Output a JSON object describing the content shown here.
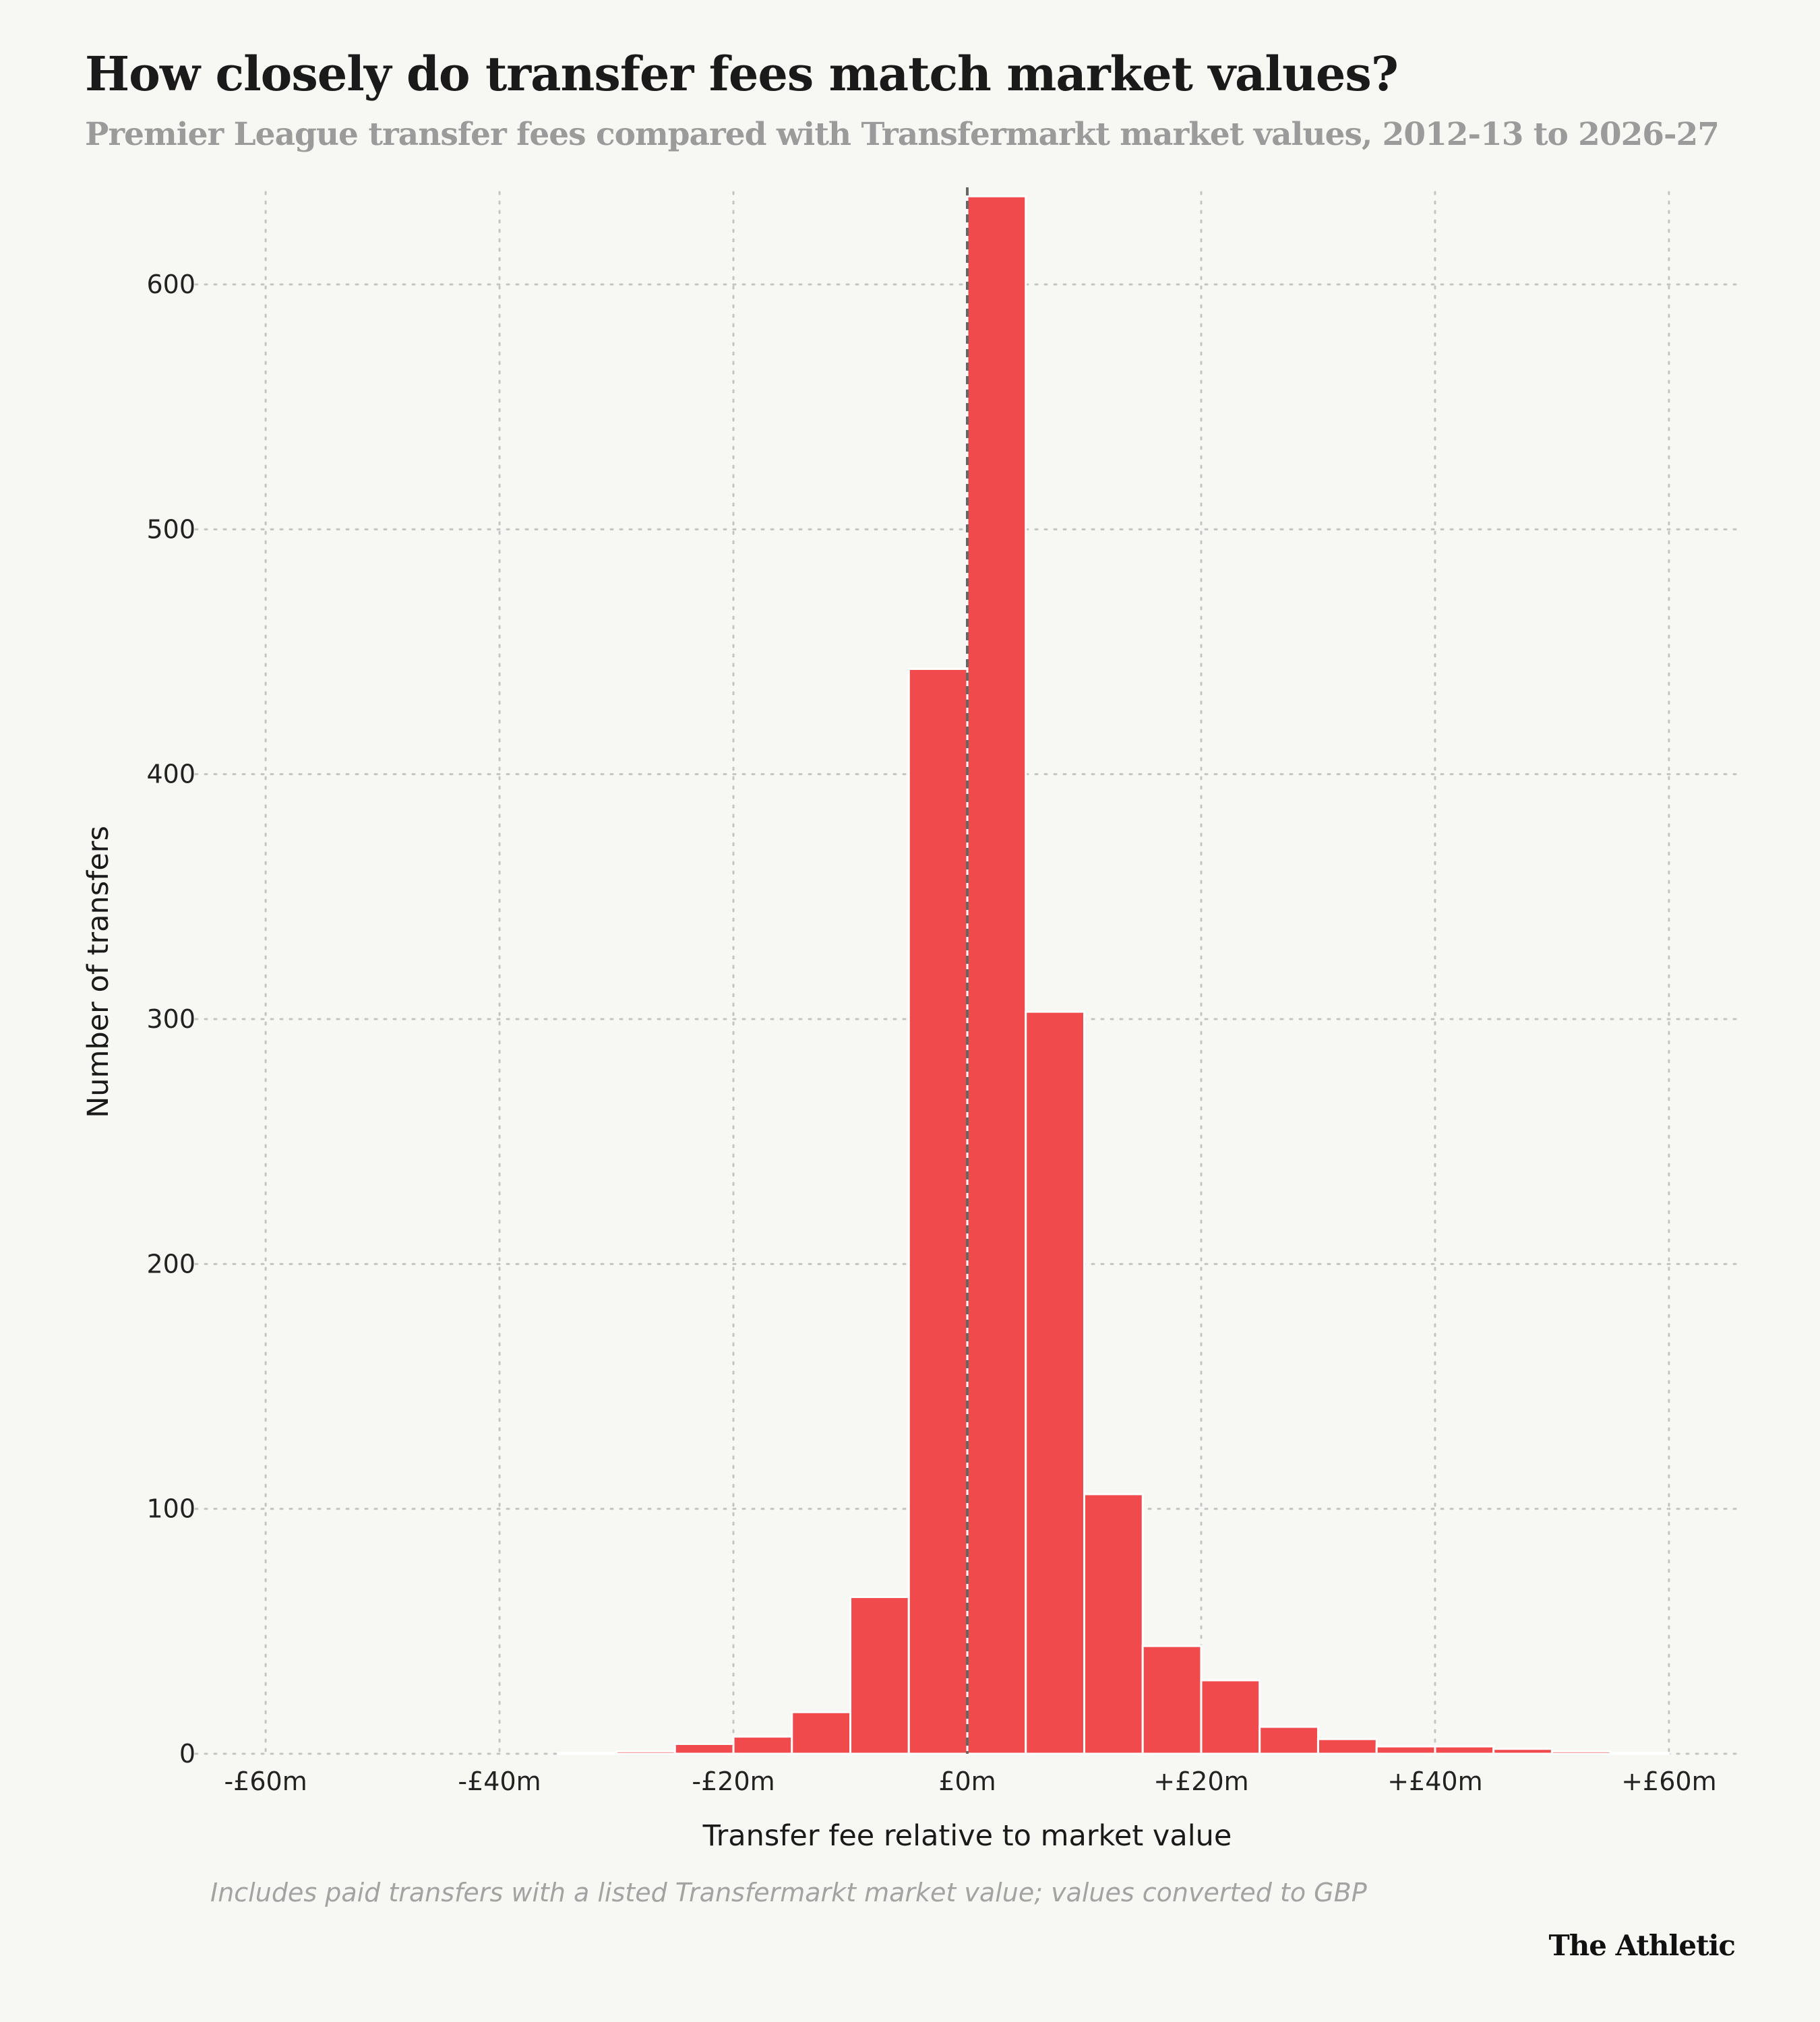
{
  "title": "How closely do transfer fees match market values?",
  "subtitle": "Premier League transfer fees compared with Transfermarkt market values, 2012-13 to 2026-27",
  "footnote": "Includes paid transfers with a listed Transfermarkt market value; values converted to GBP",
  "brand": "The Athletic",
  "chart_data": {
    "type": "bar",
    "title": "How closely do transfer fees match market values?",
    "subtitle": "Premier League transfer fees compared with Transfermarkt market values, 2012-13 to 2026-27",
    "xlabel": "Transfer fee relative to market value",
    "ylabel": "Number of transfers",
    "bin_width": 5,
    "bin_edges": [
      -35,
      -30,
      -25,
      -20,
      -15,
      -10,
      -5,
      0,
      5,
      10,
      15,
      20,
      25,
      30,
      35,
      40,
      45,
      50,
      55,
      60
    ],
    "values": [
      0.3,
      1,
      4,
      7,
      17,
      64,
      443,
      636,
      303,
      106,
      44,
      30,
      11,
      6,
      3,
      3,
      2,
      1,
      0.3
    ],
    "xlim": [
      -66,
      66
    ],
    "ylim": [
      0,
      640
    ],
    "x_ticks": [
      -60,
      -40,
      -20,
      0,
      20,
      40,
      60
    ],
    "x_tick_labels": [
      "-£60m",
      "-£40m",
      "-£20m",
      "£0m",
      "+£20m",
      "+£40m",
      "+£60m"
    ],
    "y_ticks": [
      0,
      100,
      200,
      300,
      400,
      500,
      600
    ],
    "y_tick_labels": [
      "0",
      "100",
      "200",
      "300",
      "400",
      "500",
      "600"
    ],
    "reference_line_x": 0,
    "grid": true,
    "colors": {
      "bar": "#f04a4c",
      "bar_stroke": "#ffffff",
      "grid": "#c4c4c4",
      "reference_line": "#666666",
      "background": "#f7f7f3"
    }
  }
}
